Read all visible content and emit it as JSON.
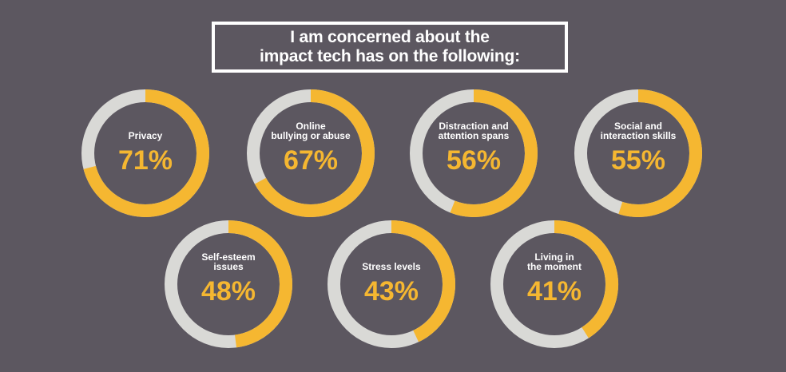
{
  "title": {
    "line1": "I am concerned about the",
    "line2": "impact tech has on the following:"
  },
  "colors": {
    "background": "#5c5760",
    "accent": "#f5b731",
    "track": "#d9d9d6",
    "label": "#ffffff"
  },
  "chart_data": {
    "type": "pie",
    "variant": "donut-grid",
    "unit": "%",
    "items": [
      {
        "label_lines": [
          "Privacy"
        ],
        "value": 71,
        "value_text": "71%"
      },
      {
        "label_lines": [
          "Online",
          "bullying or abuse"
        ],
        "value": 67,
        "value_text": "67%"
      },
      {
        "label_lines": [
          "Distraction and",
          "attention spans"
        ],
        "value": 56,
        "value_text": "56%"
      },
      {
        "label_lines": [
          "Social and",
          "interaction skills"
        ],
        "value": 55,
        "value_text": "55%"
      },
      {
        "label_lines": [
          "Self-esteem",
          "issues"
        ],
        "value": 48,
        "value_text": "48%"
      },
      {
        "label_lines": [
          "Stress levels"
        ],
        "value": 43,
        "value_text": "43%"
      },
      {
        "label_lines": [
          "Living in",
          "the moment"
        ],
        "value": 41,
        "value_text": "41%"
      }
    ]
  }
}
